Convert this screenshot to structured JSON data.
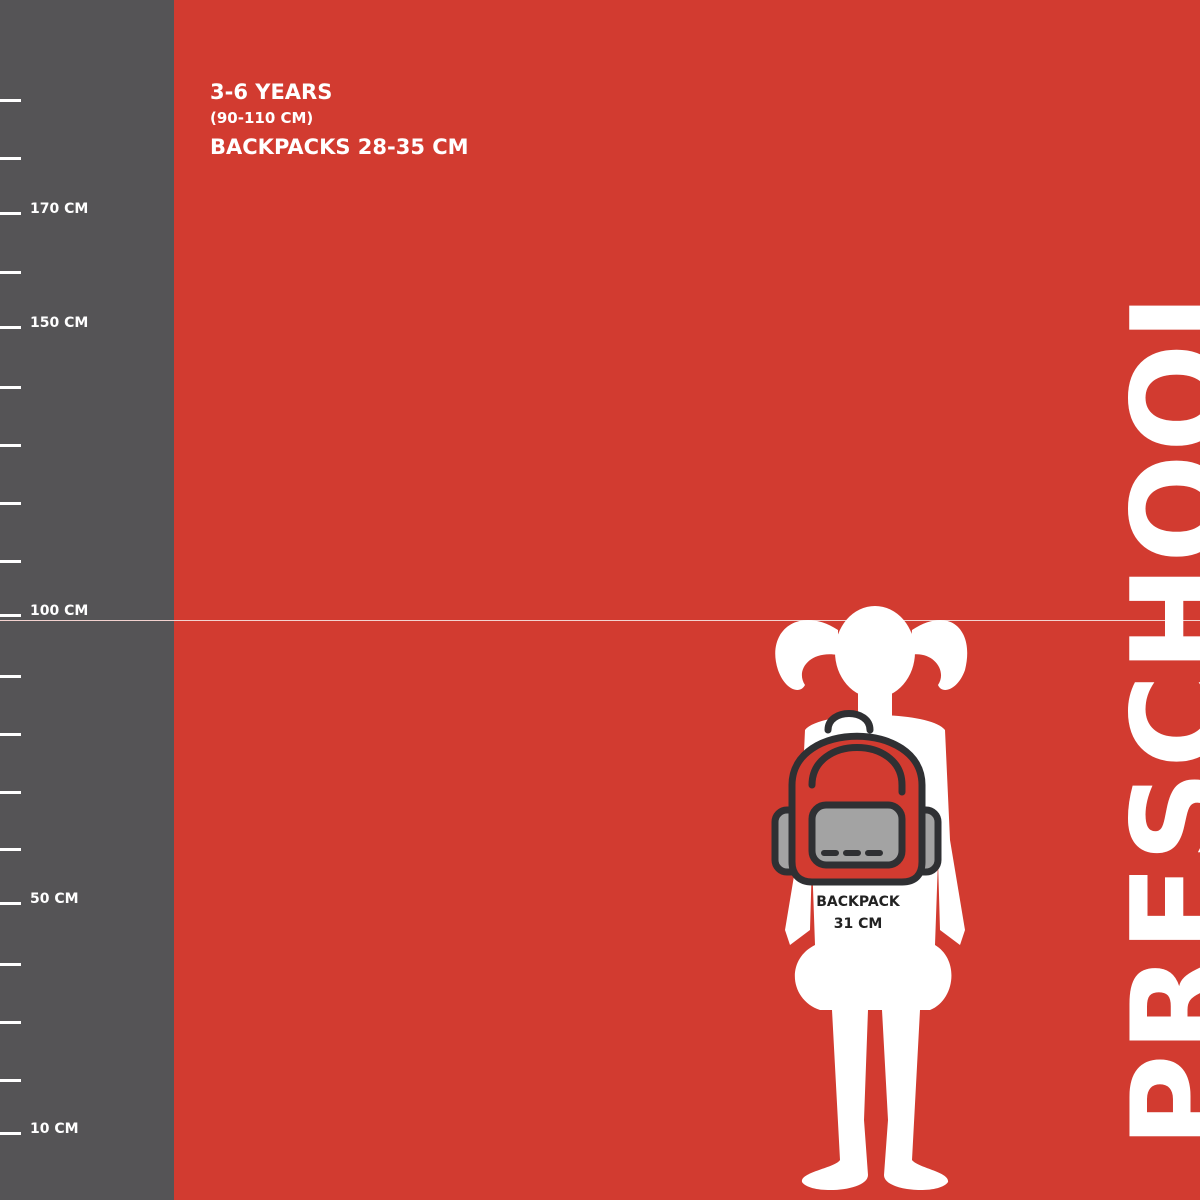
{
  "header": {
    "age_range": "3-6 YEARS",
    "height_range": "(90-110 CM)",
    "backpack_range": "BACKPACKS 28-35 CM"
  },
  "category_title": "PRESCHOOL",
  "backpack": {
    "label": "BACKPACK",
    "size": "31 CM"
  },
  "ruler": {
    "labels": [
      {
        "tick_index": 2,
        "text": "170 CM"
      },
      {
        "tick_index": 4,
        "text": "150 CM"
      },
      {
        "tick_index": 9,
        "text": "100 CM"
      },
      {
        "tick_index": 14,
        "text": "50 CM"
      },
      {
        "tick_index": 18,
        "text": "10 CM"
      }
    ]
  },
  "colors": {
    "background": "#d23b30",
    "ruler": "#555456",
    "text": "#ffffff",
    "outline": "#2f3033",
    "pocket": "#a3a3a3"
  }
}
